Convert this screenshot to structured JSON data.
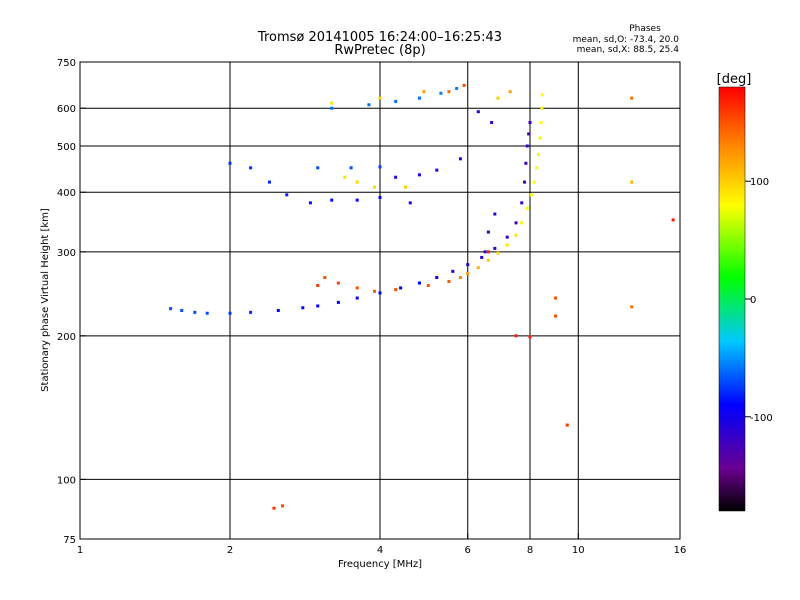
{
  "chart_data": {
    "type": "scatter",
    "title": "Tromsø 20141005 16:24:00–16:25:43",
    "subtitle": "RwPretec (8p)",
    "xlabel": "Frequency [MHz]",
    "ylabel": "Stationary phase Virtual Height [km]",
    "x_scale": "log2",
    "y_scale": "log",
    "xlim": [
      1,
      16
    ],
    "ylim": [
      75,
      750
    ],
    "x_ticks": [
      "1",
      "2",
      "4",
      "6",
      "8",
      "10",
      "16"
    ],
    "x_tick_values": [
      1,
      2,
      4,
      6,
      8,
      10,
      16
    ],
    "y_ticks": [
      "750",
      "600",
      "500",
      "400",
      "300",
      "200",
      "100",
      "75"
    ],
    "y_tick_values": [
      750,
      600,
      500,
      400,
      300,
      200,
      100,
      75
    ],
    "grid_x": [
      2,
      4,
      6,
      8,
      10
    ],
    "grid_y": [
      600,
      500,
      400,
      300,
      200,
      100
    ],
    "annotation": {
      "title": "Phases",
      "line1": "mean, sd,O: -73.4, 20.0",
      "line2": "mean, sd,X: 88.5, 25.4"
    },
    "colorbar": {
      "label": "[deg]",
      "min": -180,
      "max": 180,
      "tick_labels": [
        "100",
        "0",
        "-100"
      ],
      "tick_values": [
        100,
        0,
        -100
      ],
      "colormap": "rainbow: black-purple-blue-cyan-green-yellow-orange-red"
    },
    "series": [
      {
        "points": [
          [
            1.52,
            228,
            -70
          ],
          [
            1.6,
            226,
            -68
          ],
          [
            1.7,
            224,
            -70
          ],
          [
            1.8,
            223,
            -70
          ],
          [
            2.0,
            223,
            -75
          ],
          [
            2.2,
            224,
            -80
          ],
          [
            2.5,
            226,
            -88
          ],
          [
            2.8,
            229,
            -90
          ],
          [
            3.0,
            231,
            -90
          ],
          [
            3.3,
            235,
            -90
          ],
          [
            3.6,
            240,
            -92
          ],
          [
            4.0,
            246,
            -90
          ],
          [
            4.4,
            252,
            -90
          ],
          [
            4.8,
            258,
            -92
          ],
          [
            5.2,
            265,
            -95
          ],
          [
            5.6,
            273,
            -100
          ],
          [
            6.0,
            282,
            -105
          ],
          [
            6.4,
            292,
            -110
          ],
          [
            6.8,
            305,
            -115
          ],
          [
            7.2,
            322,
            -118
          ],
          [
            7.5,
            345,
            -120
          ],
          [
            7.7,
            380,
            -120
          ],
          [
            7.8,
            420,
            -120
          ],
          [
            7.85,
            460,
            -120
          ],
          [
            7.9,
            500,
            -120
          ],
          [
            7.95,
            530,
            -120
          ],
          [
            8.0,
            560,
            -120
          ],
          [
            6.5,
            300,
            -115
          ],
          [
            6.6,
            330,
            -112
          ],
          [
            6.8,
            360,
            -115
          ],
          [
            6.7,
            560,
            -112
          ],
          [
            6.3,
            590,
            -110
          ],
          [
            5.8,
            470,
            -110
          ],
          [
            5.2,
            445,
            -108
          ],
          [
            4.8,
            435,
            -106
          ],
          [
            4.3,
            430,
            -105
          ],
          [
            4.6,
            380,
            -100
          ],
          [
            4.0,
            390,
            -95
          ],
          [
            3.6,
            385,
            -90
          ],
          [
            3.2,
            385,
            -88
          ],
          [
            2.9,
            380,
            -85
          ],
          [
            2.6,
            395,
            -82
          ],
          [
            2.4,
            420,
            -80
          ],
          [
            2.2,
            450,
            -78
          ],
          [
            2.0,
            460,
            -76
          ],
          [
            3.0,
            450,
            -70
          ],
          [
            3.5,
            450,
            -70
          ],
          [
            4.0,
            452,
            -72
          ],
          [
            3.2,
            600,
            -60
          ],
          [
            3.8,
            610,
            -62
          ],
          [
            4.3,
            620,
            -60
          ],
          [
            4.8,
            630,
            -58
          ],
          [
            5.3,
            645,
            -56
          ],
          [
            5.7,
            660,
            -55
          ]
        ]
      },
      {
        "points": [
          [
            5.0,
            255,
            150
          ],
          [
            5.5,
            260,
            150
          ],
          [
            5.8,
            265,
            130
          ],
          [
            6.0,
            270,
            120
          ],
          [
            6.3,
            278,
            110
          ],
          [
            6.6,
            288,
            100
          ],
          [
            6.9,
            298,
            95
          ],
          [
            7.2,
            310,
            90
          ],
          [
            7.5,
            325,
            88
          ],
          [
            7.7,
            345,
            85
          ],
          [
            7.9,
            370,
            82
          ],
          [
            8.05,
            395,
            80
          ],
          [
            8.15,
            420,
            80
          ],
          [
            8.25,
            450,
            80
          ],
          [
            8.32,
            480,
            80
          ],
          [
            8.38,
            520,
            82
          ],
          [
            8.42,
            560,
            82
          ],
          [
            8.45,
            600,
            82
          ],
          [
            8.47,
            640,
            80
          ],
          [
            3.1,
            265,
            150
          ],
          [
            3.3,
            258,
            155
          ],
          [
            3.6,
            252,
            150
          ],
          [
            3.9,
            248,
            150
          ],
          [
            4.3,
            250,
            150
          ],
          [
            3.9,
            410,
            95
          ],
          [
            3.6,
            420,
            95
          ],
          [
            3.4,
            430,
            92
          ],
          [
            4.5,
            410,
            100
          ],
          [
            3.2,
            615,
            90
          ],
          [
            4.0,
            630,
            100
          ],
          [
            4.9,
            650,
            120
          ],
          [
            5.5,
            650,
            140
          ],
          [
            5.9,
            670,
            150
          ],
          [
            6.9,
            630,
            100
          ],
          [
            7.3,
            650,
            120
          ],
          [
            2.45,
            87,
            160
          ],
          [
            2.55,
            88,
            155
          ],
          [
            7.5,
            200,
            170
          ],
          [
            8.0,
            199,
            170
          ],
          [
            9.0,
            240,
            150
          ],
          [
            9.0,
            220,
            150
          ],
          [
            12.8,
            230,
            140
          ],
          [
            12.8,
            420,
            110
          ],
          [
            12.8,
            630,
            140
          ],
          [
            9.5,
            130,
            160
          ],
          [
            15.5,
            350,
            170
          ],
          [
            6.6,
            300,
            170
          ],
          [
            3.0,
            255,
            160
          ]
        ]
      }
    ]
  }
}
